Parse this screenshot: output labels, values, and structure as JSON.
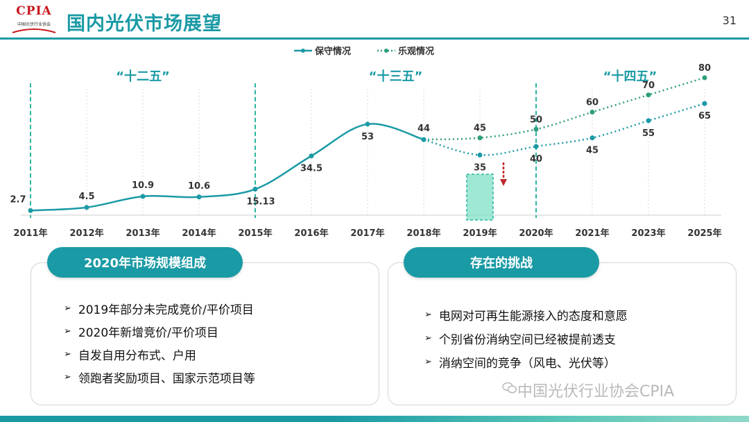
{
  "header": {
    "logo_text": "CPIA",
    "logo_sub": "中国光伏行业协会",
    "title": "国内光伏市场展望",
    "page_number": "31"
  },
  "chart_data": {
    "type": "line",
    "categories": [
      "2011年",
      "2012年",
      "2013年",
      "2014年",
      "2015年",
      "2016年",
      "2017年",
      "2018年",
      "2019年",
      "2020年",
      "2021年",
      "2023年",
      "2025年"
    ],
    "series": [
      {
        "name": "保守情况",
        "style": "solid",
        "color": "#1a9aa5",
        "values": [
          2.7,
          4.5,
          10.9,
          10.6,
          15.13,
          34.5,
          53,
          44,
          35,
          40,
          45,
          55,
          65
        ]
      },
      {
        "name": "乐观情况",
        "style": "dotted",
        "color": "#2e9e7d",
        "values": [
          null,
          null,
          null,
          null,
          null,
          null,
          null,
          44,
          45,
          50,
          60,
          70,
          80
        ]
      }
    ],
    "legend": {
      "placement": "top-center",
      "entries": [
        "保守情况",
        "乐观情况"
      ]
    },
    "periods": [
      {
        "label": "“十二五”",
        "from": "2011年",
        "to": "2015年"
      },
      {
        "label": "“十三五”",
        "from": "2015年",
        "to": "2020年"
      },
      {
        "label": "“十四五”",
        "from": "2020年",
        "to": "2025年"
      }
    ],
    "highlight_bar": {
      "category": "2019年",
      "value": 35,
      "color": "#7fe0c4"
    },
    "down_arrow": {
      "category": "2019年",
      "color": "#c0282d"
    },
    "ylim": [
      0,
      90
    ],
    "grid": false,
    "xlabel": "",
    "ylabel": ""
  },
  "left_panel": {
    "heading": "2020年市场规模组成",
    "items": [
      "2019年部分未完成竞价/平价项目",
      "2020年新增竞价/平价项目",
      "自发自用分布式、户用",
      "领跑者奖励项目、国家示范项目等"
    ]
  },
  "right_panel": {
    "heading": "存在的挑战",
    "items": [
      "电网对可再生能源接入的态度和意愿",
      "个别省份消纳空间已经被提前透支",
      "消纳空间的竞争（风电、光伏等）"
    ]
  },
  "bullet_symbol": "➢",
  "watermark": "中国光伏行业协会CPIA",
  "colors": {
    "accent": "#1a9aa5",
    "optimistic": "#2e9e7d",
    "period_line": "#2bb5a0",
    "arrow": "#c0282d"
  }
}
